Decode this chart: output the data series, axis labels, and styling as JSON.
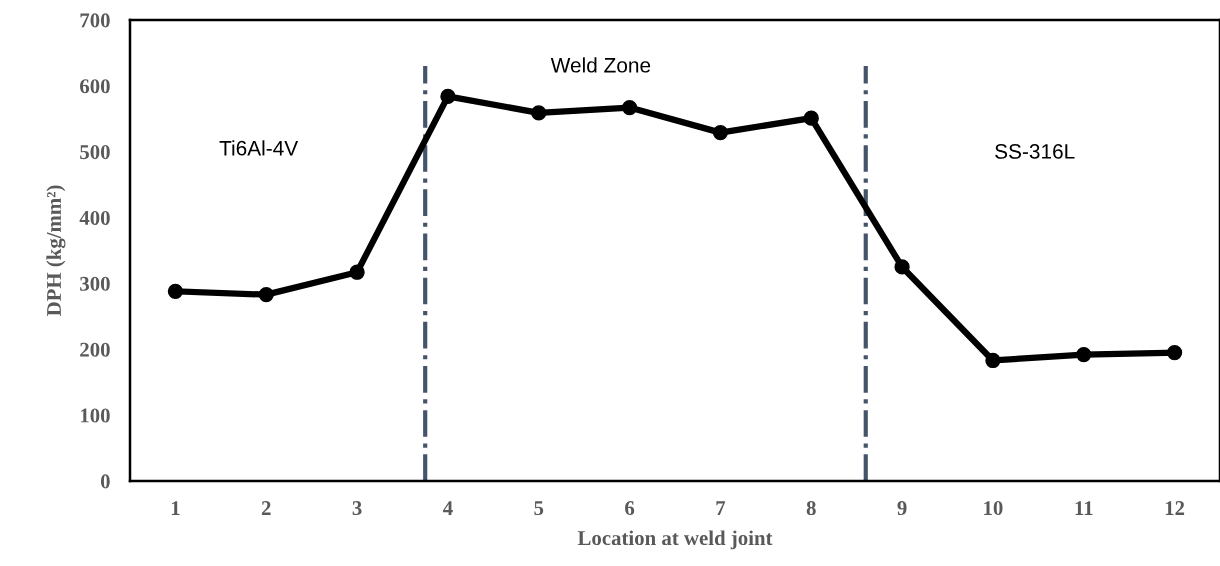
{
  "chart_data": {
    "type": "line",
    "xlabel": "Location at weld joint",
    "ylabel": "DPH (kg/mm²)",
    "x": [
      1,
      2,
      3,
      4,
      5,
      6,
      7,
      8,
      9,
      10,
      11,
      12
    ],
    "series": [
      {
        "color": "#000000",
        "values": [
          288,
          283,
          317,
          584,
          559,
          567,
          529,
          551,
          325,
          183,
          192,
          195
        ]
      }
    ],
    "marker": "circle",
    "line_style": "solid",
    "xlim": [
      0.5,
      12.5
    ],
    "xticks": [
      1,
      2,
      3,
      4,
      5,
      6,
      7,
      8,
      9,
      10,
      11,
      12
    ],
    "ylim": [
      0,
      700
    ],
    "yticks": [
      0,
      100,
      200,
      300,
      400,
      500,
      600,
      700
    ],
    "ref_lines": [
      {
        "axis": "x",
        "value": 3.75,
        "color": "#44546a",
        "line_style": "dashdot"
      },
      {
        "axis": "x",
        "value": 8.6,
        "color": "#44546a",
        "line_style": "dashdot"
      }
    ],
    "annotations": [
      "Ti6Al-4V",
      "Weld Zone",
      "SS-316L"
    ],
    "grid": false,
    "legend": false
  }
}
